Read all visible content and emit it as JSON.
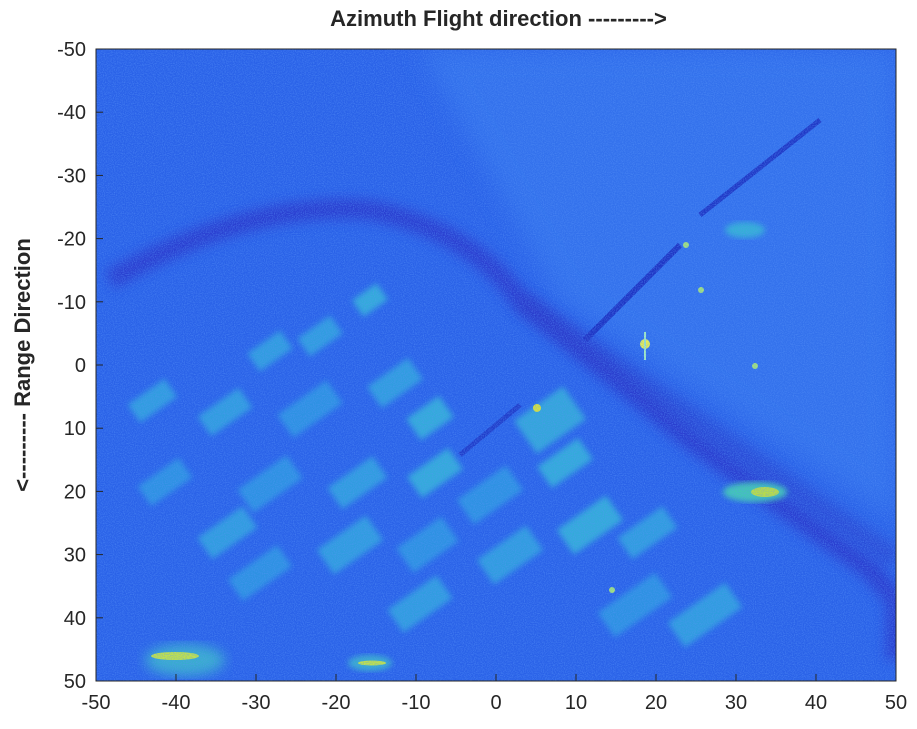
{
  "title": "Azimuth Flight direction --------->",
  "ylabel": "<--------- Range Direction",
  "x_ticks": [
    "-50",
    "-40",
    "-30",
    "-20",
    "-10",
    "0",
    "10",
    "20",
    "30",
    "40",
    "50"
  ],
  "y_ticks": [
    "-50",
    "-40",
    "-30",
    "-20",
    "-10",
    "0",
    "10",
    "20",
    "30",
    "40",
    "50"
  ],
  "colors": {
    "background": "#2a62e8",
    "dark": "#2b2fc9",
    "bright": "#2fb6d6",
    "highlight": "#d8e33a"
  }
}
